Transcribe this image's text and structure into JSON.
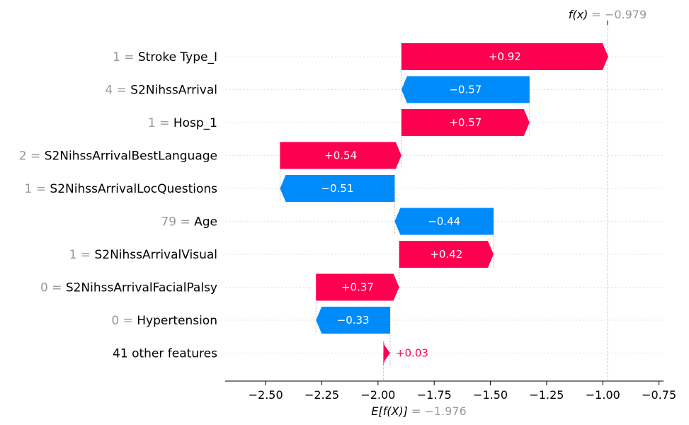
{
  "chart_data": {
    "type": "waterfall",
    "base_value": -1.976,
    "output_value": -0.979,
    "fx_label": {
      "prefix": "f(x)",
      "value": " = −0.979"
    },
    "ex_label": {
      "prefix": "E[f(X)]",
      "value": " = −1.976"
    },
    "features": [
      {
        "value": "1",
        "name": "Stroke Type_I",
        "contribution": 0.92,
        "label": "+0.92"
      },
      {
        "value": "4",
        "name": "S2NihssArrival",
        "contribution": -0.57,
        "label": "−0.57"
      },
      {
        "value": "1",
        "name": "Hosp_1",
        "contribution": 0.57,
        "label": "+0.57"
      },
      {
        "value": "2",
        "name": "S2NihssArrivalBestLanguage",
        "contribution": 0.54,
        "label": "+0.54"
      },
      {
        "value": "1",
        "name": "S2NihssArrivalLocQuestions",
        "contribution": -0.51,
        "label": "−0.51"
      },
      {
        "value": "79",
        "name": "Age",
        "contribution": -0.44,
        "label": "−0.44"
      },
      {
        "value": "1",
        "name": "S2NihssArrivalVisual",
        "contribution": 0.42,
        "label": "+0.42"
      },
      {
        "value": "0",
        "name": "S2NihssArrivalFacialPalsy",
        "contribution": 0.37,
        "label": "+0.37"
      },
      {
        "value": "0",
        "name": "Hypertension",
        "contribution": -0.33,
        "label": "−0.33"
      },
      {
        "value": "",
        "name": "41 other features",
        "contribution": 0.03,
        "label": "+0.03"
      }
    ],
    "xlim": [
      -2.68,
      -0.73
    ],
    "xticks": [
      -2.5,
      -2.25,
      -2.0,
      -1.75,
      -1.5,
      -1.25,
      -1.0,
      -0.75
    ],
    "xtick_labels": [
      "−2.50",
      "−2.25",
      "−2.00",
      "−1.75",
      "−1.50",
      "−1.25",
      "−1.00",
      "−0.75"
    ],
    "colors": {
      "positive": "#ff0051",
      "negative": "#008bfb",
      "muted": "#999999",
      "grid": "#cccccc"
    }
  }
}
